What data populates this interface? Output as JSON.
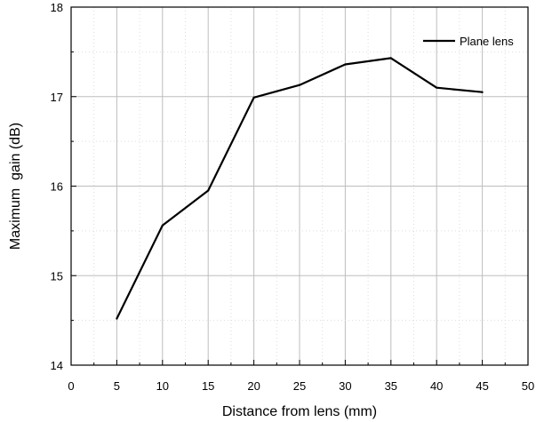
{
  "chart_data": {
    "type": "line",
    "title": "",
    "xlabel": "Distance from lens (mm)",
    "ylabel": "Maximum  gain (dB)",
    "xlim": [
      0,
      50
    ],
    "ylim": [
      14,
      18
    ],
    "x_ticks": [
      0,
      5,
      10,
      15,
      20,
      25,
      30,
      35,
      40,
      45,
      50
    ],
    "y_ticks": [
      14,
      15,
      16,
      17,
      18
    ],
    "grid": true,
    "legend_position": "top-right",
    "series": [
      {
        "name": "Plane lens",
        "color": "#000000",
        "x": [
          5,
          10,
          15,
          20,
          25,
          30,
          35,
          40,
          45
        ],
        "y": [
          14.52,
          15.56,
          15.95,
          16.99,
          17.13,
          17.36,
          17.43,
          17.1,
          17.05
        ]
      }
    ]
  }
}
